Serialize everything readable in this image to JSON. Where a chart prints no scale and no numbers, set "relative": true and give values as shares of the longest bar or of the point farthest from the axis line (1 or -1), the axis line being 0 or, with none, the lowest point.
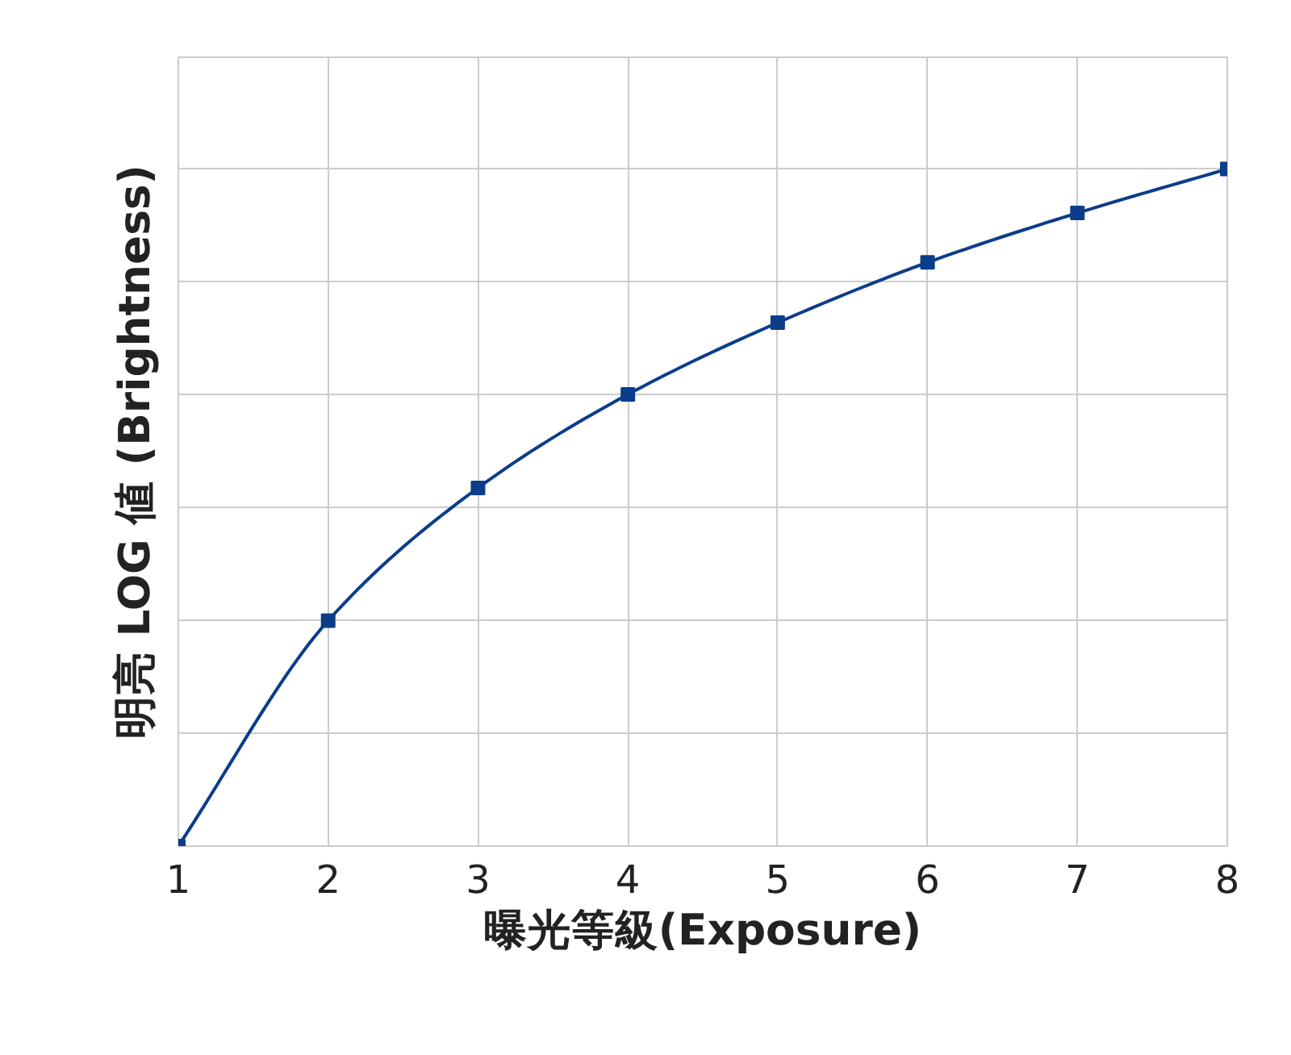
{
  "chart_data": {
    "type": "line",
    "relative": true,
    "xlabel": "曝光等級(Exposure)",
    "ylabel": "明亮 LOG 値 (Brightness)",
    "x": [
      1,
      2,
      3,
      4,
      5,
      6,
      7,
      8
    ],
    "xlim": [
      1,
      8
    ],
    "xticks": [
      1,
      2,
      3,
      4,
      5,
      6,
      7,
      8
    ],
    "series": [
      {
        "color": "#0b3d8a",
        "values": [
          0,
          0.333,
          0.529,
          0.667,
          0.773,
          0.862,
          0.935,
          1
        ]
      }
    ],
    "marker": "square",
    "line_style": "solid",
    "grid": true,
    "tick_labels": "x"
  }
}
